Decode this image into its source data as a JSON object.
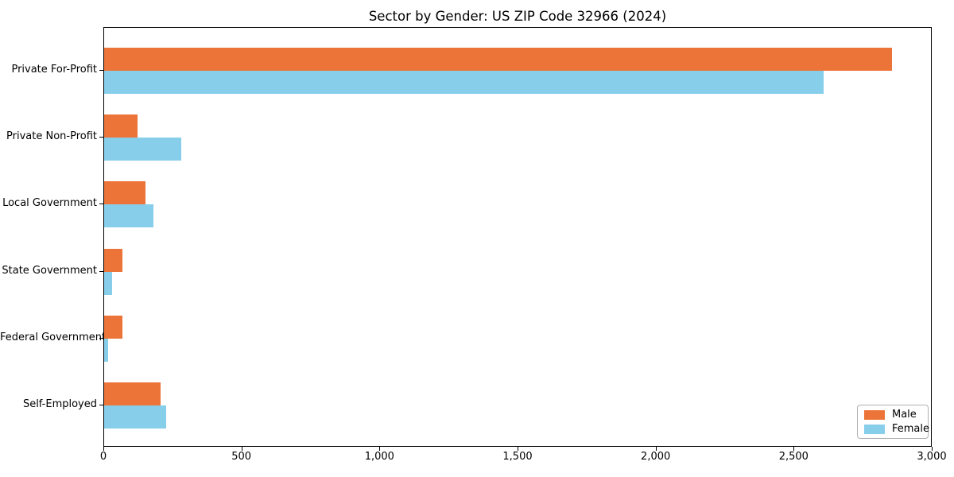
{
  "title": "Sector by Gender: US ZIP Code 32966 (2024)",
  "chart_data": {
    "type": "bar",
    "orientation": "horizontal",
    "title": "Sector by Gender: US ZIP Code 32966 (2024)",
    "categories": [
      "Private For-Profit",
      "Private Non-Profit",
      "Local Government",
      "State Government",
      "Federal Government",
      "Self-Employed"
    ],
    "series": [
      {
        "name": "Male",
        "color": "#EC7439",
        "values": [
          2860,
          120,
          150,
          65,
          65,
          205
        ]
      },
      {
        "name": "Female",
        "color": "#87CEEB",
        "values": [
          2610,
          280,
          180,
          30,
          15,
          225
        ]
      }
    ],
    "xlabel": "",
    "ylabel": "",
    "xlim": [
      0,
      3000
    ],
    "x_ticks": [
      {
        "value": 0,
        "label": "0"
      },
      {
        "value": 500,
        "label": "500"
      },
      {
        "value": 1000,
        "label": "1,000"
      },
      {
        "value": 1500,
        "label": "1,500"
      },
      {
        "value": 2000,
        "label": "2,000"
      },
      {
        "value": 2500,
        "label": "2,500"
      },
      {
        "value": 3000,
        "label": "3,000"
      }
    ],
    "grid": false,
    "legend_position": "lower right"
  }
}
